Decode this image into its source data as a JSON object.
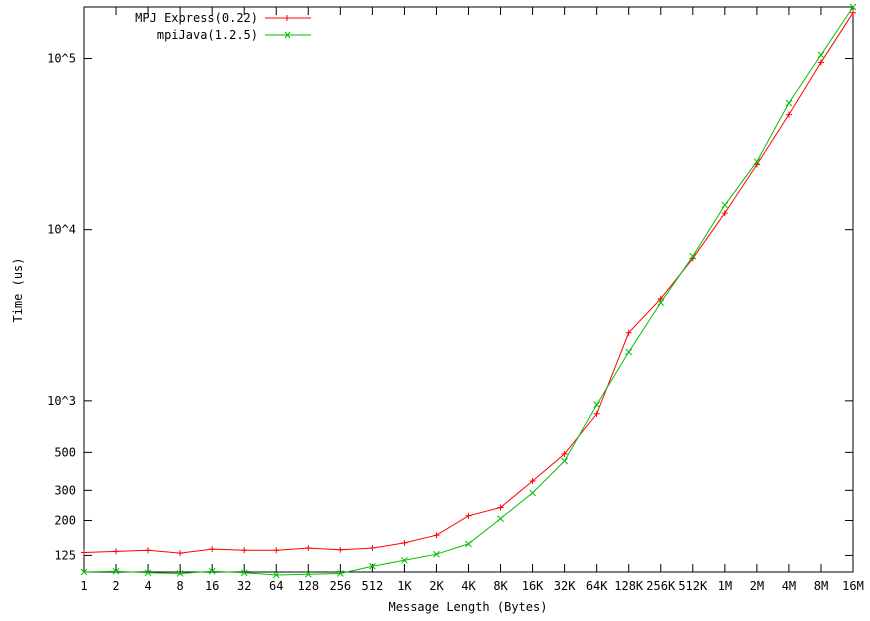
{
  "chart_data": {
    "type": "line",
    "title": "",
    "xlabel": "Message Length (Bytes)",
    "ylabel": "Time (us)",
    "x_scale": "log2-categorical",
    "y_scale": "log",
    "ylim": [
      100,
      200000
    ],
    "categories": [
      "1",
      "2",
      "4",
      "8",
      "16",
      "32",
      "64",
      "128",
      "256",
      "512",
      "1K",
      "2K",
      "4K",
      "8K",
      "16K",
      "32K",
      "64K",
      "128K",
      "256K",
      "512K",
      "1M",
      "2M",
      "4M",
      "8M",
      "16M"
    ],
    "y_ticks": [
      {
        "value": 125,
        "label": "125"
      },
      {
        "value": 200,
        "label": "200"
      },
      {
        "value": 300,
        "label": "300"
      },
      {
        "value": 500,
        "label": "500"
      },
      {
        "value": 1000,
        "label": "10^3"
      },
      {
        "value": 10000,
        "label": "10^4"
      },
      {
        "value": 100000,
        "label": "10^5"
      }
    ],
    "legend_position": "top-left",
    "grid": false,
    "series": [
      {
        "name": "MPJ Express(0.22)",
        "color": "#ff0000",
        "marker": "plus",
        "values": [
          130,
          132,
          134,
          129,
          136,
          134,
          134,
          138,
          135,
          138,
          148,
          164,
          213,
          238,
          340,
          490,
          840,
          2500,
          3950,
          6800,
          12500,
          24000,
          47000,
          95000,
          185000
        ]
      },
      {
        "name": "mpiJava(1.2.5)",
        "color": "#00c000",
        "marker": "cross",
        "values": [
          100,
          101,
          99,
          98,
          101,
          99,
          96,
          97,
          98,
          108,
          117,
          127,
          146,
          205,
          290,
          445,
          950,
          1930,
          3750,
          7000,
          13900,
          25000,
          55000,
          105000,
          200000
        ]
      }
    ]
  }
}
